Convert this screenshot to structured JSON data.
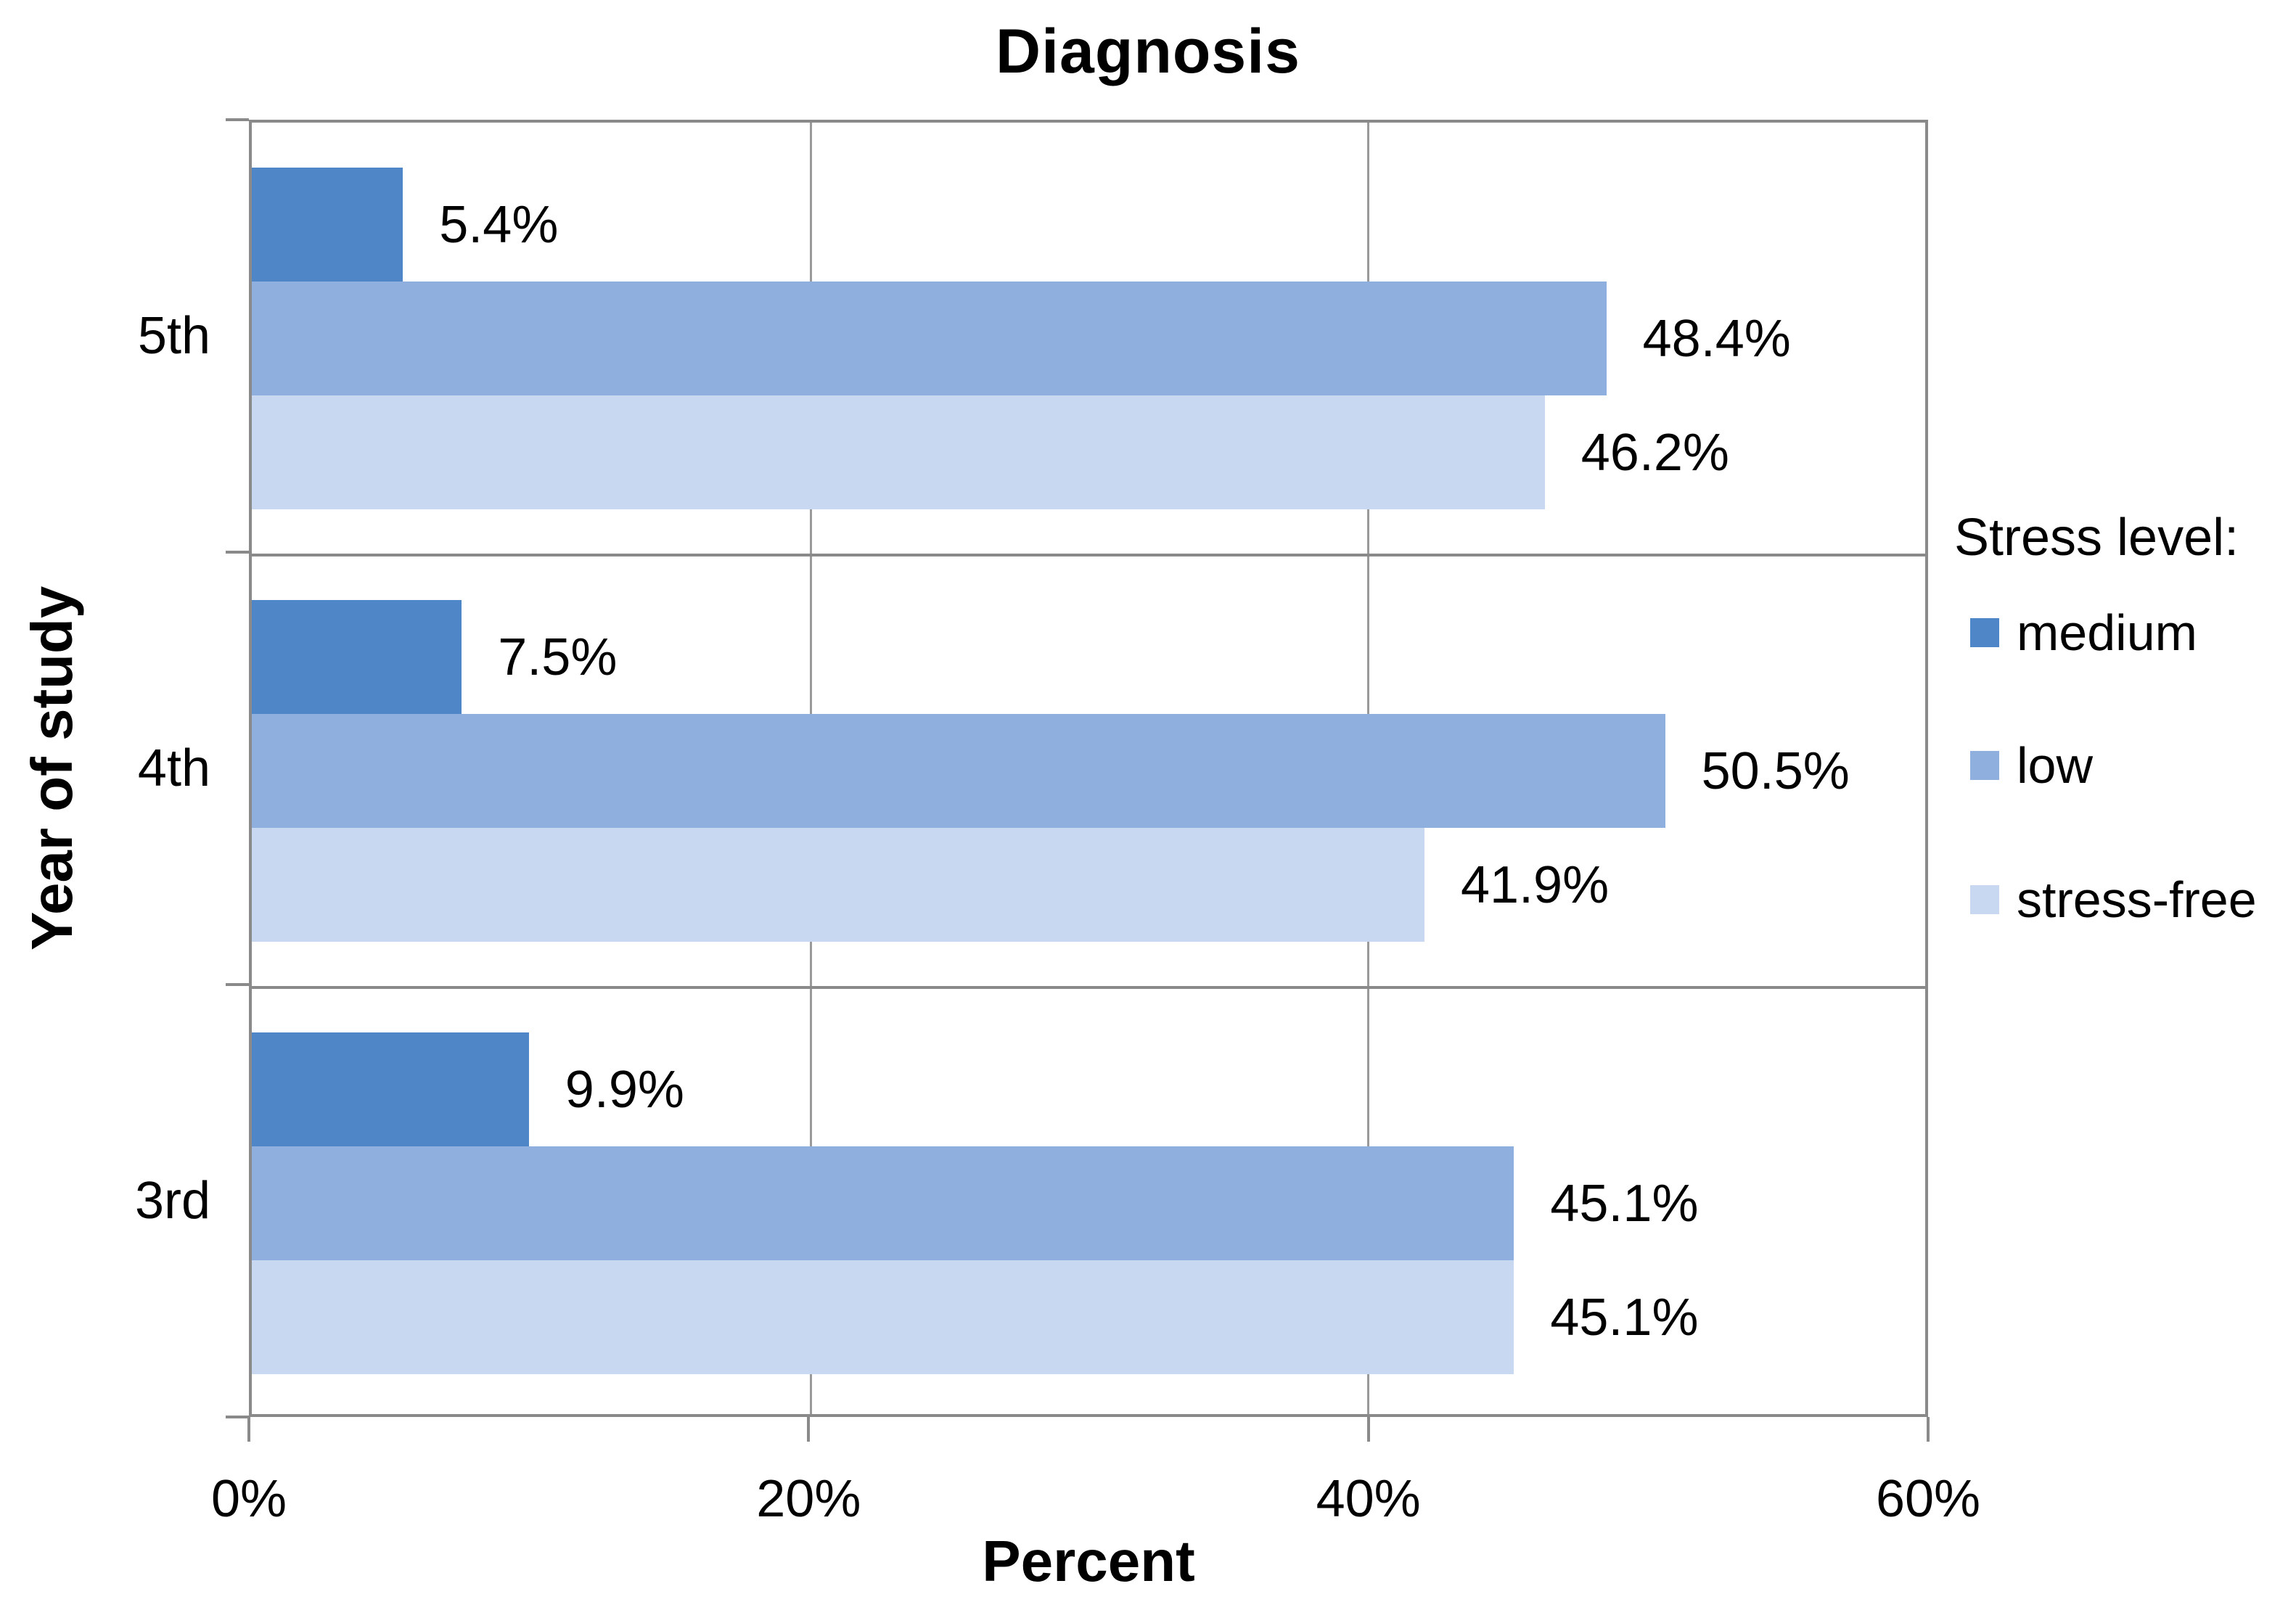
{
  "title": "Diagnosis",
  "x_axis": {
    "label": "Percent",
    "tick_labels": [
      "0%",
      "20%",
      "40%",
      "60%"
    ],
    "tick_values": [
      0,
      20,
      40,
      60
    ],
    "max": 60
  },
  "y_axis": {
    "label": "Year of study"
  },
  "legend": {
    "title": "Stress level:",
    "items": [
      {
        "label": "medium",
        "color": "#4e86c8"
      },
      {
        "label": "low",
        "color": "#8fafdf"
      },
      {
        "label": "stress-free",
        "color": "#c9d8f1"
      }
    ]
  },
  "colors": {
    "frame": "#8a8a8a",
    "gridline": "#9a9a9a",
    "background": "#ffffff",
    "text": "#000000"
  },
  "chart_data": {
    "type": "bar",
    "orientation": "horizontal",
    "title": "Diagnosis",
    "xlabel": "Percent",
    "ylabel": "Year of study",
    "xlim": [
      0,
      60
    ],
    "grid": true,
    "legend_position": "right",
    "categories": [
      "5th",
      "4th",
      "3rd"
    ],
    "series": [
      {
        "name": "medium",
        "color": "#4e86c8",
        "values": [
          5.4,
          7.5,
          9.9
        ]
      },
      {
        "name": "low",
        "color": "#8fafdf",
        "values": [
          48.4,
          50.5,
          45.1
        ]
      },
      {
        "name": "stress-free",
        "color": "#c9d8f1",
        "values": [
          46.2,
          41.9,
          45.1
        ]
      }
    ],
    "value_labels": [
      [
        "5.4%",
        "48.4%",
        "46.2%"
      ],
      [
        "7.5%",
        "50.5%",
        "41.9%"
      ],
      [
        "9.9%",
        "45.1%",
        "45.1%"
      ]
    ]
  }
}
